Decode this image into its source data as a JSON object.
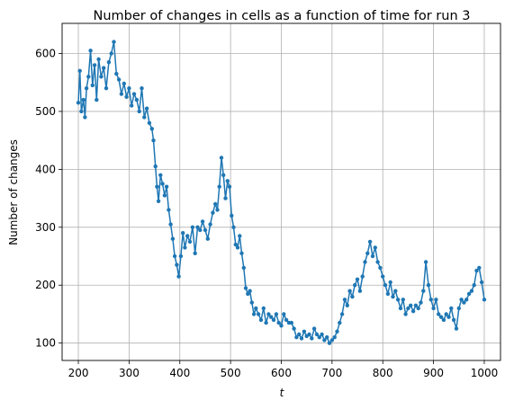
{
  "chart_data": {
    "type": "line",
    "title": "Number of changes in cells as a function of time for run 3",
    "xlabel": "t",
    "ylabel": "Number of changes",
    "xlim": [
      168,
      1032
    ],
    "ylim": [
      70,
      652
    ],
    "xticks": [
      200,
      300,
      400,
      500,
      600,
      700,
      800,
      900,
      1000
    ],
    "yticks": [
      100,
      200,
      300,
      400,
      500,
      600
    ],
    "grid": true,
    "marker": "circle",
    "color": "#1f77b4",
    "series": [
      {
        "keypoints": [
          [
            200,
            515
          ],
          [
            203,
            570
          ],
          [
            206,
            500
          ],
          [
            210,
            520
          ],
          [
            213,
            490
          ],
          [
            216,
            540
          ],
          [
            220,
            560
          ],
          [
            224,
            605
          ],
          [
            228,
            545
          ],
          [
            232,
            580
          ],
          [
            236,
            520
          ],
          [
            240,
            590
          ],
          [
            245,
            560
          ],
          [
            250,
            575
          ],
          [
            255,
            540
          ],
          [
            260,
            585
          ],
          [
            265,
            600
          ],
          [
            270,
            620
          ],
          [
            275,
            565
          ],
          [
            280,
            555
          ],
          [
            285,
            530
          ],
          [
            290,
            548
          ],
          [
            295,
            525
          ],
          [
            300,
            540
          ],
          [
            305,
            510
          ],
          [
            310,
            530
          ],
          [
            315,
            520
          ],
          [
            320,
            500
          ],
          [
            325,
            540
          ],
          [
            330,
            490
          ],
          [
            335,
            505
          ],
          [
            340,
            480
          ],
          [
            345,
            470
          ],
          [
            348,
            450
          ],
          [
            352,
            405
          ],
          [
            355,
            370
          ],
          [
            358,
            345
          ],
          [
            362,
            390
          ],
          [
            366,
            375
          ],
          [
            370,
            355
          ],
          [
            374,
            370
          ],
          [
            378,
            330
          ],
          [
            382,
            305
          ],
          [
            386,
            280
          ],
          [
            390,
            250
          ],
          [
            394,
            235
          ],
          [
            398,
            215
          ],
          [
            402,
            250
          ],
          [
            406,
            290
          ],
          [
            410,
            265
          ],
          [
            415,
            285
          ],
          [
            420,
            275
          ],
          [
            425,
            300
          ],
          [
            430,
            255
          ],
          [
            435,
            300
          ],
          [
            440,
            295
          ],
          [
            445,
            310
          ],
          [
            450,
            295
          ],
          [
            455,
            280
          ],
          [
            460,
            305
          ],
          [
            465,
            325
          ],
          [
            470,
            340
          ],
          [
            474,
            330
          ],
          [
            478,
            370
          ],
          [
            482,
            420
          ],
          [
            486,
            390
          ],
          [
            490,
            350
          ],
          [
            494,
            380
          ],
          [
            498,
            370
          ],
          [
            502,
            320
          ],
          [
            506,
            300
          ],
          [
            510,
            270
          ],
          [
            514,
            265
          ],
          [
            518,
            285
          ],
          [
            522,
            255
          ],
          [
            526,
            230
          ],
          [
            530,
            195
          ],
          [
            534,
            185
          ],
          [
            538,
            190
          ],
          [
            542,
            170
          ],
          [
            546,
            150
          ],
          [
            550,
            160
          ],
          [
            555,
            150
          ],
          [
            560,
            140
          ],
          [
            565,
            160
          ],
          [
            570,
            135
          ],
          [
            575,
            150
          ],
          [
            580,
            145
          ],
          [
            585,
            140
          ],
          [
            590,
            150
          ],
          [
            595,
            135
          ],
          [
            600,
            130
          ],
          [
            605,
            150
          ],
          [
            610,
            140
          ],
          [
            615,
            135
          ],
          [
            620,
            135
          ],
          [
            625,
            125
          ],
          [
            630,
            110
          ],
          [
            635,
            115
          ],
          [
            640,
            108
          ],
          [
            645,
            120
          ],
          [
            650,
            112
          ],
          [
            655,
            115
          ],
          [
            660,
            108
          ],
          [
            665,
            125
          ],
          [
            670,
            115
          ],
          [
            675,
            110
          ],
          [
            680,
            115
          ],
          [
            685,
            105
          ],
          [
            690,
            110
          ],
          [
            695,
            100
          ],
          [
            700,
            105
          ],
          [
            705,
            110
          ],
          [
            710,
            120
          ],
          [
            715,
            135
          ],
          [
            720,
            150
          ],
          [
            725,
            175
          ],
          [
            730,
            165
          ],
          [
            735,
            190
          ],
          [
            740,
            180
          ],
          [
            745,
            200
          ],
          [
            750,
            210
          ],
          [
            755,
            190
          ],
          [
            760,
            215
          ],
          [
            765,
            240
          ],
          [
            770,
            255
          ],
          [
            775,
            275
          ],
          [
            780,
            250
          ],
          [
            785,
            265
          ],
          [
            790,
            240
          ],
          [
            795,
            230
          ],
          [
            800,
            215
          ],
          [
            805,
            200
          ],
          [
            810,
            185
          ],
          [
            815,
            205
          ],
          [
            820,
            180
          ],
          [
            825,
            190
          ],
          [
            830,
            175
          ],
          [
            835,
            160
          ],
          [
            840,
            175
          ],
          [
            845,
            150
          ],
          [
            850,
            160
          ],
          [
            855,
            165
          ],
          [
            860,
            155
          ],
          [
            865,
            165
          ],
          [
            870,
            160
          ],
          [
            875,
            170
          ],
          [
            880,
            190
          ],
          [
            885,
            240
          ],
          [
            890,
            200
          ],
          [
            895,
            175
          ],
          [
            900,
            160
          ],
          [
            905,
            175
          ],
          [
            910,
            150
          ],
          [
            915,
            145
          ],
          [
            920,
            140
          ],
          [
            925,
            150
          ],
          [
            930,
            145
          ],
          [
            935,
            160
          ],
          [
            940,
            140
          ],
          [
            945,
            125
          ],
          [
            950,
            160
          ],
          [
            955,
            175
          ],
          [
            960,
            170
          ],
          [
            965,
            175
          ],
          [
            970,
            185
          ],
          [
            975,
            190
          ],
          [
            980,
            200
          ],
          [
            985,
            225
          ],
          [
            990,
            230
          ],
          [
            995,
            205
          ],
          [
            1000,
            175
          ]
        ]
      }
    ]
  }
}
